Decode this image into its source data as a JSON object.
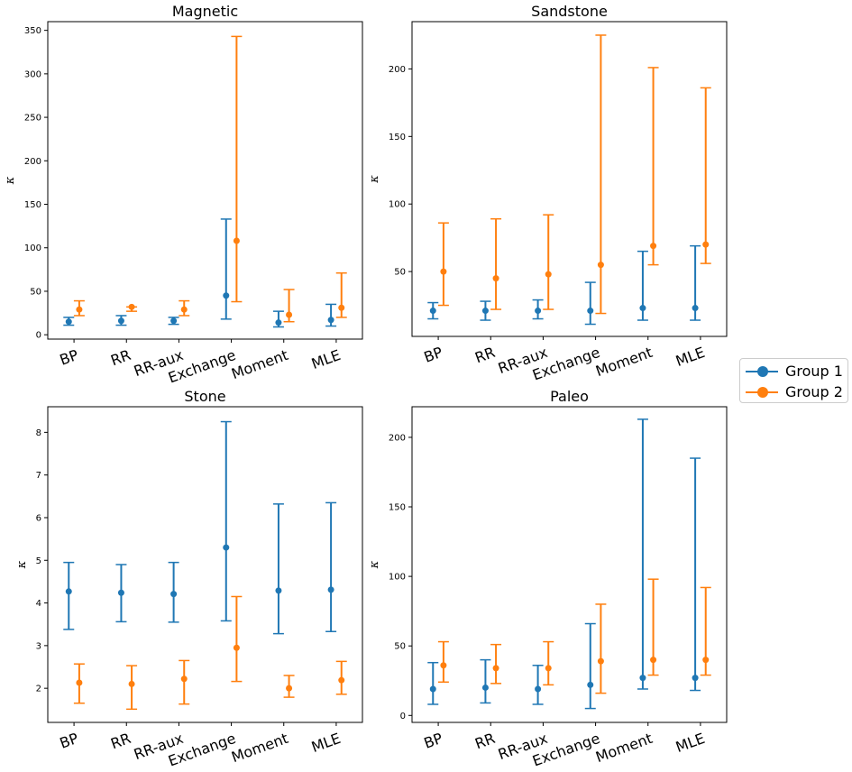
{
  "chart_data": [
    {
      "type": "errorbar",
      "title": "Magnetic",
      "ylabel": "κ",
      "categories": [
        "BP",
        "RR",
        "RR-aux",
        "Exchange",
        "Moment",
        "MLE"
      ],
      "ylim": [
        -5,
        360
      ],
      "yticks": [
        0,
        50,
        100,
        150,
        200,
        250,
        300,
        350
      ],
      "series": [
        {
          "name": "Group 1",
          "values": [
            15,
            16,
            16,
            45,
            14,
            17
          ],
          "lower": [
            11,
            11,
            12,
            18,
            9,
            10
          ],
          "upper": [
            20,
            22,
            20,
            133,
            27,
            35
          ]
        },
        {
          "name": "Group 2",
          "values": [
            29,
            32,
            29,
            108,
            23,
            31
          ],
          "lower": [
            22,
            27,
            22,
            38,
            15,
            20
          ],
          "upper": [
            39,
            32,
            39,
            343,
            52,
            71
          ]
        }
      ]
    },
    {
      "type": "errorbar",
      "title": "Sandstone",
      "ylabel": "κ",
      "categories": [
        "BP",
        "RR",
        "RR-aux",
        "Exchange",
        "Moment",
        "MLE"
      ],
      "ylim": [
        2,
        235
      ],
      "yticks": [
        50,
        100,
        150,
        200
      ],
      "series": [
        {
          "name": "Group 1",
          "values": [
            21,
            21,
            21,
            21,
            23,
            23
          ],
          "lower": [
            15,
            14,
            15,
            11,
            14,
            14
          ],
          "upper": [
            27,
            28,
            29,
            42,
            65,
            69
          ]
        },
        {
          "name": "Group 2",
          "values": [
            50,
            45,
            48,
            55,
            69,
            70
          ],
          "lower": [
            25,
            22,
            22,
            19,
            55,
            56
          ],
          "upper": [
            86,
            89,
            92,
            225,
            201,
            186
          ]
        }
      ]
    },
    {
      "type": "errorbar",
      "title": "Stone",
      "ylabel": "κ",
      "categories": [
        "BP",
        "RR",
        "RR-aux",
        "Exchange",
        "Moment",
        "MLE"
      ],
      "ylim": [
        1.2,
        8.6
      ],
      "yticks": [
        2,
        3,
        4,
        5,
        6,
        7,
        8
      ],
      "series": [
        {
          "name": "Group 1",
          "values": [
            4.27,
            4.24,
            4.21,
            5.3,
            4.29,
            4.31
          ],
          "lower": [
            3.38,
            3.56,
            3.55,
            3.58,
            3.28,
            3.33
          ],
          "upper": [
            4.95,
            4.9,
            4.95,
            8.25,
            6.32,
            6.35
          ]
        },
        {
          "name": "Group 2",
          "values": [
            2.13,
            2.1,
            2.22,
            2.95,
            2.0,
            2.19
          ],
          "lower": [
            1.65,
            1.51,
            1.63,
            2.16,
            1.79,
            1.86
          ],
          "upper": [
            2.57,
            2.53,
            2.65,
            4.15,
            2.3,
            2.63
          ]
        }
      ]
    },
    {
      "type": "errorbar",
      "title": "Paleo",
      "ylabel": "κ",
      "categories": [
        "BP",
        "RR",
        "RR-aux",
        "Exchange",
        "Moment",
        "MLE"
      ],
      "ylim": [
        -5,
        222
      ],
      "yticks": [
        0,
        50,
        100,
        150,
        200
      ],
      "series": [
        {
          "name": "Group 1",
          "values": [
            19,
            20,
            19,
            22,
            27,
            27
          ],
          "lower": [
            8,
            9,
            8,
            5,
            19,
            18
          ],
          "upper": [
            38,
            40,
            36,
            66,
            213,
            185
          ]
        },
        {
          "name": "Group 2",
          "values": [
            36,
            34,
            34,
            39,
            40,
            40
          ],
          "lower": [
            24,
            23,
            22,
            16,
            29,
            29
          ],
          "upper": [
            53,
            51,
            53,
            80,
            98,
            92
          ]
        }
      ]
    }
  ],
  "legend": {
    "entries": [
      {
        "label": "Group 1",
        "color": "#1f77b4"
      },
      {
        "label": "Group 2",
        "color": "#ff7f0e"
      }
    ]
  }
}
